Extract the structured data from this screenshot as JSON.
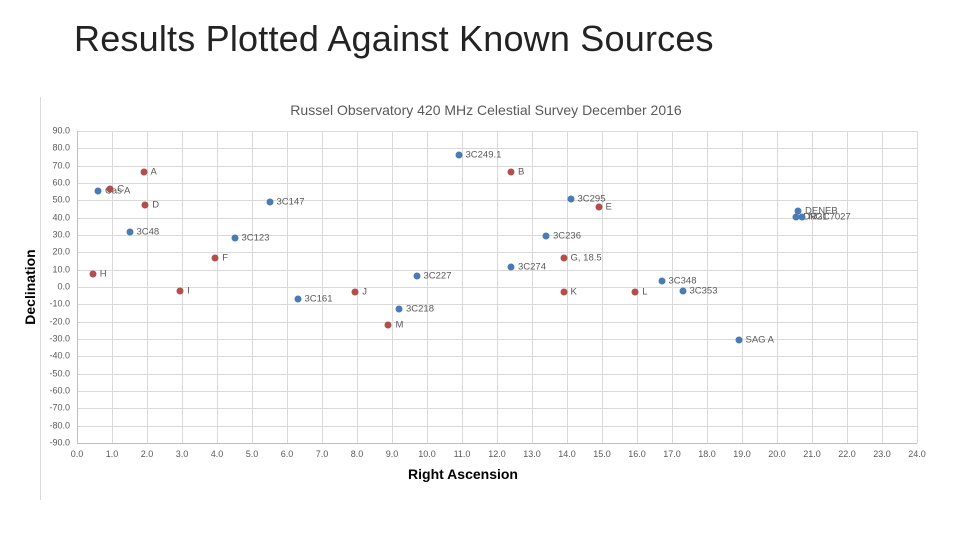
{
  "slide": {
    "title": "Results Plotted Against Known Sources"
  },
  "chart_data": {
    "type": "scatter",
    "title": "Russel Observatory 420 MHz Celestial Survey December 2016",
    "xlabel": "Right Ascension",
    "ylabel": "Declination",
    "xlim": [
      0,
      24
    ],
    "xstep": 1,
    "ylim": [
      -90,
      90
    ],
    "ystep": 10,
    "grid": true,
    "legend_position": "none",
    "colors": {
      "known_sources": "#4a7bb5",
      "survey_results": "#b04f4b",
      "gridline": "#d9d9d9",
      "axis_line": "#bfbfbf",
      "tick_text": "#595959",
      "chart_title_text": "#595959"
    },
    "series": [
      {
        "name": "known_sources",
        "color": "#4a7bb5",
        "points": [
          {
            "x": 0.6,
            "y": 55.5,
            "label": "Cas A"
          },
          {
            "x": 1.5,
            "y": 31.5,
            "label": "3C48"
          },
          {
            "x": 4.5,
            "y": 28.5,
            "label": "3C123"
          },
          {
            "x": 5.5,
            "y": 49.0,
            "label": "3C147"
          },
          {
            "x": 6.3,
            "y": -7.0,
            "label": "3C161"
          },
          {
            "x": 9.2,
            "y": -12.5,
            "label": "3C218"
          },
          {
            "x": 9.7,
            "y": 6.5,
            "label": "3C227"
          },
          {
            "x": 10.9,
            "y": 76.0,
            "label": "3C249.1"
          },
          {
            "x": 12.4,
            "y": 11.5,
            "label": "3C274"
          },
          {
            "x": 13.4,
            "y": 29.5,
            "label": "3C236"
          },
          {
            "x": 14.1,
            "y": 51.0,
            "label": "3C295"
          },
          {
            "x": 16.7,
            "y": 3.5,
            "label": "3C348"
          },
          {
            "x": 17.3,
            "y": -2.5,
            "label": "3C353"
          },
          {
            "x": 18.9,
            "y": -30.5,
            "label": "SAG A"
          },
          {
            "x": 20.6,
            "y": 44.0,
            "label": "DENEB"
          },
          {
            "x": 20.55,
            "y": 40.5,
            "label": "DR21"
          },
          {
            "x": 20.7,
            "y": 40.2,
            "label": "NGC7027"
          }
        ]
      },
      {
        "name": "survey_results",
        "color": "#b04f4b",
        "points": [
          {
            "x": 1.9,
            "y": 66.5,
            "label": "A"
          },
          {
            "x": 12.4,
            "y": 66.5,
            "label": "B"
          },
          {
            "x": 0.95,
            "y": 56.5,
            "label": "C"
          },
          {
            "x": 1.95,
            "y": 47.5,
            "label": "D"
          },
          {
            "x": 14.9,
            "y": 46.0,
            "label": "E"
          },
          {
            "x": 3.95,
            "y": 17.0,
            "label": "F"
          },
          {
            "x": 13.9,
            "y": 17.0,
            "label": "G, 18.5"
          },
          {
            "x": 0.45,
            "y": 7.5,
            "label": "H"
          },
          {
            "x": 2.95,
            "y": -2.5,
            "label": "I"
          },
          {
            "x": 7.95,
            "y": -3.0,
            "label": "J"
          },
          {
            "x": 13.9,
            "y": -3.0,
            "label": "K"
          },
          {
            "x": 15.95,
            "y": -3.0,
            "label": "L"
          },
          {
            "x": 8.9,
            "y": -22.0,
            "label": "M"
          }
        ]
      }
    ]
  }
}
